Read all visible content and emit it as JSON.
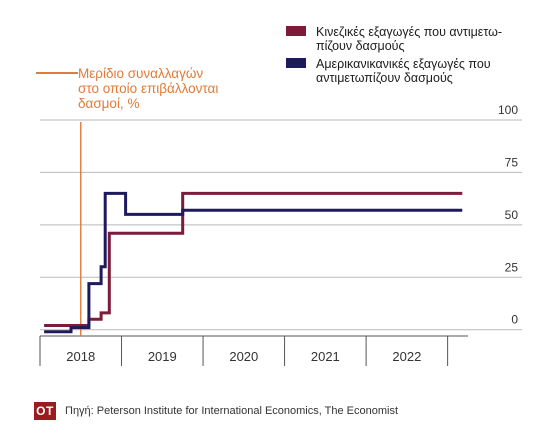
{
  "chart_data": {
    "type": "line",
    "step": true,
    "annotation": {
      "label_lines": [
        "Μερίδιο συναλλαγών",
        "στο οποίο επιβάλλονται",
        "δασμοί, %"
      ],
      "color": "#e07b39",
      "x": 2018.0
    },
    "yticks": [
      0,
      25,
      50,
      75,
      100
    ],
    "ytick_labels": [
      "0",
      "25",
      "50",
      "75",
      "100"
    ],
    "ylim": [
      -3,
      100
    ],
    "xlim": [
      2017.5,
      2022.75
    ],
    "xtick_labels": [
      {
        "label": "2018",
        "x": 2018.0
      },
      {
        "label": "2019",
        "x": 2019.0
      },
      {
        "label": "2020",
        "x": 2020.0
      },
      {
        "label": "2021",
        "x": 2021.0
      },
      {
        "label": "2022",
        "x": 2022.0
      }
    ],
    "year_dividers": [
      2017.5,
      2018.5,
      2019.5,
      2020.5,
      2021.5,
      2022.5
    ],
    "grid": true,
    "series": [
      {
        "name": "Κινεζικές εξαγωγές που αντιμετω-πίζουν δασμούς",
        "legend_lines": [
          "Κινεζικές εξαγωγές που αντιμετω-",
          "πίζουν δασμούς"
        ],
        "color": "#7b1c3a",
        "points": [
          [
            2017.55,
            2
          ],
          [
            2017.88,
            2
          ],
          [
            2017.88,
            2
          ],
          [
            2018.1,
            2
          ],
          [
            2018.1,
            5
          ],
          [
            2018.25,
            5
          ],
          [
            2018.25,
            8
          ],
          [
            2018.35,
            8
          ],
          [
            2018.35,
            46
          ],
          [
            2019.25,
            46
          ],
          [
            2019.25,
            65
          ],
          [
            2022.68,
            65
          ]
        ]
      },
      {
        "name": "Αμερικανικανικές εξαγωγές που αντιμετωπίζουν δασμούς",
        "legend_lines": [
          "Αμερικανικανικές εξαγωγές που",
          "αντιμετωπίζουν δασμούς"
        ],
        "color": "#1e1a5e",
        "points": [
          [
            2017.55,
            -1
          ],
          [
            2017.88,
            -1
          ],
          [
            2017.88,
            1
          ],
          [
            2018.1,
            1
          ],
          [
            2018.1,
            22
          ],
          [
            2018.25,
            22
          ],
          [
            2018.25,
            30
          ],
          [
            2018.3,
            30
          ],
          [
            2018.3,
            65
          ],
          [
            2018.55,
            65
          ],
          [
            2018.55,
            55
          ],
          [
            2019.25,
            55
          ],
          [
            2019.25,
            57
          ],
          [
            2022.68,
            57
          ]
        ]
      }
    ]
  },
  "footer": {
    "logo": "OT",
    "source": "Πηγή: Peterson Institute for International Economics, The Economist"
  }
}
